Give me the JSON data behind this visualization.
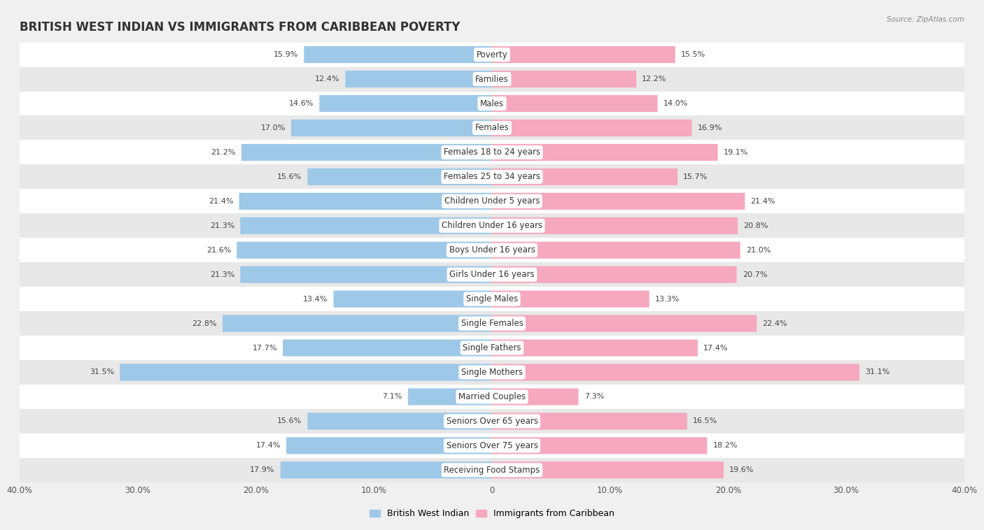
{
  "title": "BRITISH WEST INDIAN VS IMMIGRANTS FROM CARIBBEAN POVERTY",
  "source": "Source: ZipAtlas.com",
  "categories": [
    "Poverty",
    "Families",
    "Males",
    "Females",
    "Females 18 to 24 years",
    "Females 25 to 34 years",
    "Children Under 5 years",
    "Children Under 16 years",
    "Boys Under 16 years",
    "Girls Under 16 years",
    "Single Males",
    "Single Females",
    "Single Fathers",
    "Single Mothers",
    "Married Couples",
    "Seniors Over 65 years",
    "Seniors Over 75 years",
    "Receiving Food Stamps"
  ],
  "left_values": [
    15.9,
    12.4,
    14.6,
    17.0,
    21.2,
    15.6,
    21.4,
    21.3,
    21.6,
    21.3,
    13.4,
    22.8,
    17.7,
    31.5,
    7.1,
    15.6,
    17.4,
    17.9
  ],
  "right_values": [
    15.5,
    12.2,
    14.0,
    16.9,
    19.1,
    15.7,
    21.4,
    20.8,
    21.0,
    20.7,
    13.3,
    22.4,
    17.4,
    31.1,
    7.3,
    16.5,
    18.2,
    19.6
  ],
  "left_color": "#9EC8E8",
  "right_color": "#F5A8BE",
  "xlim": 40.0,
  "legend_left": "British West Indian",
  "legend_right": "Immigrants from Caribbean",
  "background_color": "#f0f0f0",
  "row_light": "#ffffff",
  "row_dark": "#e8e8e8",
  "title_fontsize": 12,
  "label_fontsize": 8.5,
  "value_fontsize": 8
}
